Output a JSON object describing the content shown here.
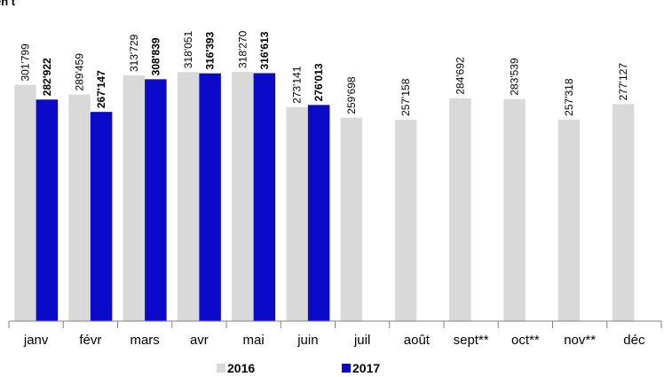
{
  "chart_data": {
    "type": "bar",
    "title": "en t",
    "categories": [
      "janv",
      "févr",
      "mars",
      "avr",
      "mai",
      "juin",
      "juil",
      "août",
      "sept**",
      "oct**",
      "nov**",
      "déc"
    ],
    "series": [
      {
        "name": "2016",
        "color": "#d9d9d9",
        "values": [
          301799,
          289459,
          313729,
          318051,
          318270,
          273141,
          259698,
          257158,
          284692,
          283539,
          257318,
          277127
        ],
        "value_labels": [
          "301'799",
          "289'459",
          "313'729",
          "318'051",
          "318'270",
          "273'141",
          "259'698",
          "257'158",
          "284'692",
          "283'539",
          "257'318",
          "277'127"
        ]
      },
      {
        "name": "2017",
        "color": "#0a0ac8",
        "values": [
          282922,
          267147,
          308839,
          316393,
          316613,
          276013,
          null,
          null,
          null,
          null,
          null,
          null
        ],
        "value_labels": [
          "282'922",
          "267'147",
          "308'839",
          "316'393",
          "316'613",
          "276'013",
          null,
          null,
          null,
          null,
          null,
          null
        ]
      }
    ],
    "ylim": [
      0,
      350000
    ]
  }
}
